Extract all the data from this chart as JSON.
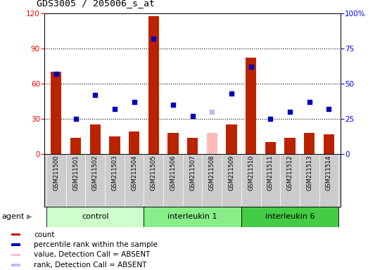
{
  "title": "GDS3005 / 205006_s_at",
  "samples": [
    "GSM211500",
    "GSM211501",
    "GSM211502",
    "GSM211503",
    "GSM211504",
    "GSM211505",
    "GSM211506",
    "GSM211507",
    "GSM211508",
    "GSM211509",
    "GSM211510",
    "GSM211511",
    "GSM211512",
    "GSM211513",
    "GSM211514"
  ],
  "bar_values": [
    70,
    14,
    25,
    15,
    19,
    118,
    18,
    14,
    null,
    25,
    82,
    10,
    14,
    18,
    17
  ],
  "bar_absent": [
    null,
    null,
    null,
    null,
    null,
    null,
    null,
    null,
    18,
    null,
    null,
    null,
    null,
    null,
    null
  ],
  "rank_values": [
    57,
    25,
    42,
    32,
    37,
    82,
    35,
    27,
    null,
    43,
    62,
    25,
    30,
    37,
    32
  ],
  "rank_absent": [
    null,
    null,
    null,
    null,
    null,
    null,
    null,
    null,
    30,
    null,
    null,
    null,
    null,
    null,
    null
  ],
  "groups": [
    {
      "label": "control",
      "start": 0,
      "end": 4,
      "color": "#ccffcc"
    },
    {
      "label": "interleukin 1",
      "start": 5,
      "end": 9,
      "color": "#88ee88"
    },
    {
      "label": "interleukin 6",
      "start": 10,
      "end": 14,
      "color": "#44cc44"
    }
  ],
  "ylim_left": [
    0,
    120
  ],
  "ylim_right": [
    0,
    100
  ],
  "yticks_left": [
    0,
    30,
    60,
    90,
    120
  ],
  "yticks_right": [
    0,
    25,
    50,
    75,
    100
  ],
  "ytick_labels_right": [
    "0",
    "25",
    "50",
    "75",
    "100%"
  ],
  "bar_color": "#bb2200",
  "bar_absent_color": "#ffbbbb",
  "rank_color": "#0000bb",
  "rank_absent_color": "#bbbbff",
  "bg_color": "#cccccc",
  "plot_bg": "#ffffff",
  "agent_label": "agent",
  "legend_items": [
    {
      "label": "count",
      "color": "#bb2200"
    },
    {
      "label": "percentile rank within the sample",
      "color": "#0000bb"
    },
    {
      "label": "value, Detection Call = ABSENT",
      "color": "#ffbbbb"
    },
    {
      "label": "rank, Detection Call = ABSENT",
      "color": "#bbbbff"
    }
  ]
}
